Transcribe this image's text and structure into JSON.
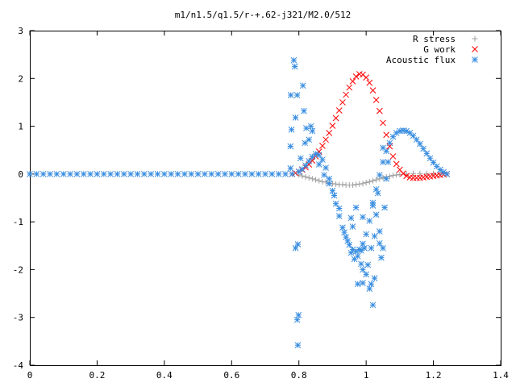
{
  "chart_data": {
    "type": "scatter",
    "title": "m1/n1.5/q1.5/r-+.62-j321/M2.0/512",
    "xlabel": "",
    "ylabel": "",
    "xlim": [
      0,
      1.4
    ],
    "ylim": [
      -4,
      3
    ],
    "x_ticks": [
      "0",
      "0.2",
      "0.4",
      "0.6",
      "0.8",
      "1",
      "1.2",
      "1.4"
    ],
    "y_ticks": [
      "3",
      "2",
      "1",
      "0",
      "-1",
      "-2",
      "-3",
      "-4"
    ],
    "legend_position": "top-right",
    "grid": false,
    "series": [
      {
        "name": "R stress",
        "marker": "plus",
        "color": "#a0a0a0",
        "points": [
          [
            0.8,
            -0.02
          ],
          [
            0.81,
            -0.04
          ],
          [
            0.82,
            -0.06
          ],
          [
            0.83,
            -0.08
          ],
          [
            0.84,
            -0.1
          ],
          [
            0.85,
            -0.12
          ],
          [
            0.86,
            -0.14
          ],
          [
            0.87,
            -0.16
          ],
          [
            0.88,
            -0.17
          ],
          [
            0.89,
            -0.19
          ],
          [
            0.9,
            -0.2
          ],
          [
            0.91,
            -0.21
          ],
          [
            0.92,
            -0.22
          ],
          [
            0.93,
            -0.22
          ],
          [
            0.94,
            -0.23
          ],
          [
            0.95,
            -0.23
          ],
          [
            0.96,
            -0.23
          ],
          [
            0.97,
            -0.22
          ],
          [
            0.98,
            -0.21
          ],
          [
            0.99,
            -0.2
          ],
          [
            1.0,
            -0.18
          ],
          [
            1.01,
            -0.16
          ],
          [
            1.02,
            -0.14
          ],
          [
            1.03,
            -0.12
          ],
          [
            1.04,
            -0.1
          ],
          [
            1.05,
            -0.08
          ],
          [
            1.06,
            -0.06
          ],
          [
            1.07,
            -0.05
          ],
          [
            1.08,
            -0.03
          ],
          [
            1.09,
            -0.02
          ],
          [
            1.1,
            -0.01
          ],
          [
            1.12,
            0.0
          ],
          [
            1.14,
            0.01
          ],
          [
            1.16,
            0.01
          ],
          [
            1.18,
            0.01
          ],
          [
            1.2,
            0.01
          ],
          [
            1.22,
            0.0
          ],
          [
            1.24,
            0.0
          ]
        ]
      },
      {
        "name": "G work",
        "marker": "cross",
        "color": "#ff0000",
        "points": [
          [
            0.78,
            0.0
          ],
          [
            0.79,
            0.02
          ],
          [
            0.8,
            0.05
          ],
          [
            0.81,
            0.09
          ],
          [
            0.82,
            0.14
          ],
          [
            0.83,
            0.2
          ],
          [
            0.84,
            0.28
          ],
          [
            0.85,
            0.37
          ],
          [
            0.86,
            0.47
          ],
          [
            0.87,
            0.59
          ],
          [
            0.88,
            0.72
          ],
          [
            0.89,
            0.86
          ],
          [
            0.9,
            1.01
          ],
          [
            0.91,
            1.17
          ],
          [
            0.92,
            1.33
          ],
          [
            0.93,
            1.5
          ],
          [
            0.94,
            1.66
          ],
          [
            0.95,
            1.81
          ],
          [
            0.96,
            1.94
          ],
          [
            0.97,
            2.04
          ],
          [
            0.98,
            2.09
          ],
          [
            0.99,
            2.08
          ],
          [
            1.0,
            2.02
          ],
          [
            1.01,
            1.91
          ],
          [
            1.02,
            1.75
          ],
          [
            1.03,
            1.55
          ],
          [
            1.04,
            1.32
          ],
          [
            1.05,
            1.07
          ],
          [
            1.06,
            0.82
          ],
          [
            1.07,
            0.58
          ],
          [
            1.08,
            0.37
          ],
          [
            1.09,
            0.21
          ],
          [
            1.1,
            0.09
          ],
          [
            1.11,
            0.01
          ],
          [
            1.12,
            -0.04
          ],
          [
            1.13,
            -0.07
          ],
          [
            1.14,
            -0.08
          ],
          [
            1.15,
            -0.08
          ],
          [
            1.16,
            -0.08
          ],
          [
            1.17,
            -0.07
          ],
          [
            1.18,
            -0.06
          ],
          [
            1.19,
            -0.05
          ],
          [
            1.2,
            -0.04
          ],
          [
            1.21,
            -0.03
          ],
          [
            1.22,
            -0.02
          ],
          [
            1.23,
            -0.01
          ],
          [
            1.24,
            0.0
          ]
        ]
      },
      {
        "name": "Acoustic flux",
        "marker": "star",
        "color": "#3a8ee0",
        "points": [
          [
            0.0,
            0.0
          ],
          [
            0.02,
            0.0
          ],
          [
            0.04,
            0.0
          ],
          [
            0.06,
            0.0
          ],
          [
            0.08,
            0.0
          ],
          [
            0.1,
            0.0
          ],
          [
            0.12,
            0.0
          ],
          [
            0.14,
            0.0
          ],
          [
            0.16,
            0.0
          ],
          [
            0.18,
            0.0
          ],
          [
            0.2,
            0.0
          ],
          [
            0.22,
            0.0
          ],
          [
            0.24,
            0.0
          ],
          [
            0.26,
            0.0
          ],
          [
            0.28,
            0.0
          ],
          [
            0.3,
            0.0
          ],
          [
            0.32,
            0.0
          ],
          [
            0.34,
            0.0
          ],
          [
            0.36,
            0.0
          ],
          [
            0.38,
            0.0
          ],
          [
            0.4,
            0.0
          ],
          [
            0.42,
            0.0
          ],
          [
            0.44,
            0.0
          ],
          [
            0.46,
            0.0
          ],
          [
            0.48,
            0.0
          ],
          [
            0.5,
            0.0
          ],
          [
            0.52,
            0.0
          ],
          [
            0.54,
            0.0
          ],
          [
            0.56,
            0.0
          ],
          [
            0.58,
            0.0
          ],
          [
            0.6,
            0.0
          ],
          [
            0.62,
            0.0
          ],
          [
            0.64,
            0.0
          ],
          [
            0.66,
            0.0
          ],
          [
            0.68,
            0.0
          ],
          [
            0.7,
            0.0
          ],
          [
            0.72,
            0.0
          ],
          [
            0.74,
            0.0
          ],
          [
            0.76,
            0.0
          ],
          [
            0.78,
            0.0
          ],
          [
            0.8,
            0.05
          ],
          [
            0.81,
            0.1
          ],
          [
            0.82,
            0.18
          ],
          [
            0.83,
            0.27
          ],
          [
            0.84,
            0.36
          ],
          [
            0.85,
            0.42
          ],
          [
            0.86,
            0.4
          ],
          [
            0.87,
            0.3
          ],
          [
            0.88,
            0.13
          ],
          [
            0.89,
            -0.1
          ],
          [
            0.9,
            -0.35
          ],
          [
            0.91,
            -0.62
          ],
          [
            0.92,
            -0.88
          ],
          [
            0.93,
            -1.12
          ],
          [
            0.94,
            -1.32
          ],
          [
            0.95,
            -1.48
          ],
          [
            0.96,
            -1.58
          ],
          [
            0.97,
            -1.62
          ],
          [
            0.98,
            -1.58
          ],
          [
            0.99,
            -1.46
          ],
          [
            1.0,
            -1.26
          ],
          [
            1.01,
            -0.98
          ],
          [
            1.02,
            -0.66
          ],
          [
            1.03,
            -0.32
          ],
          [
            1.04,
            -0.02
          ],
          [
            1.05,
            0.25
          ],
          [
            1.06,
            0.48
          ],
          [
            1.07,
            0.65
          ],
          [
            1.08,
            0.78
          ],
          [
            1.09,
            0.86
          ],
          [
            1.1,
            0.9
          ],
          [
            1.11,
            0.91
          ],
          [
            1.12,
            0.9
          ],
          [
            1.13,
            0.86
          ],
          [
            1.14,
            0.8
          ],
          [
            1.15,
            0.72
          ],
          [
            1.16,
            0.63
          ],
          [
            1.17,
            0.53
          ],
          [
            1.18,
            0.43
          ],
          [
            1.19,
            0.33
          ],
          [
            1.2,
            0.24
          ],
          [
            1.21,
            0.16
          ],
          [
            1.22,
            0.09
          ],
          [
            1.23,
            0.04
          ],
          [
            1.24,
            0.0
          ],
          [
            0.785,
            2.38
          ],
          [
            0.788,
            2.25
          ],
          [
            0.776,
            1.65
          ],
          [
            0.778,
            0.93
          ],
          [
            0.79,
            1.18
          ],
          [
            0.795,
            1.65
          ],
          [
            0.812,
            1.85
          ],
          [
            0.815,
            1.32
          ],
          [
            0.822,
            0.96
          ],
          [
            0.818,
            0.65
          ],
          [
            0.805,
            0.33
          ],
          [
            0.775,
            0.58
          ],
          [
            0.775,
            0.12
          ],
          [
            0.79,
            -1.55
          ],
          [
            0.797,
            -1.47
          ],
          [
            0.795,
            -3.05
          ],
          [
            0.799,
            -2.95
          ],
          [
            0.797,
            -3.58
          ],
          [
            0.83,
            0.72
          ],
          [
            0.836,
            1.0
          ],
          [
            0.84,
            0.9
          ],
          [
            0.86,
            0.2
          ],
          [
            0.875,
            -0.02
          ],
          [
            0.89,
            -0.2
          ],
          [
            0.905,
            -0.45
          ],
          [
            0.92,
            -0.72
          ],
          [
            0.935,
            -1.22
          ],
          [
            0.945,
            -1.4
          ],
          [
            0.955,
            -1.65
          ],
          [
            0.965,
            -1.78
          ],
          [
            0.975,
            -1.72
          ],
          [
            0.985,
            -1.6
          ],
          [
            0.995,
            -1.55
          ],
          [
            0.985,
            -1.88
          ],
          [
            0.99,
            -2.0
          ],
          [
            1.0,
            -2.1
          ],
          [
            0.99,
            -2.28
          ],
          [
            0.975,
            -2.3
          ],
          [
            1.01,
            -2.4
          ],
          [
            1.02,
            -2.74
          ],
          [
            1.015,
            -2.3
          ],
          [
            1.025,
            -2.18
          ],
          [
            1.005,
            -1.9
          ],
          [
            1.015,
            -1.55
          ],
          [
            1.025,
            -1.3
          ],
          [
            1.03,
            -0.85
          ],
          [
            1.02,
            -0.6
          ],
          [
            1.035,
            -0.4
          ],
          [
            1.04,
            -1.45
          ],
          [
            1.045,
            -1.75
          ],
          [
            1.05,
            -1.55
          ],
          [
            1.04,
            -1.2
          ],
          [
            1.055,
            -0.7
          ],
          [
            1.06,
            -0.1
          ],
          [
            1.065,
            0.25
          ],
          [
            1.05,
            0.55
          ],
          [
            0.99,
            -0.9
          ],
          [
            0.97,
            -0.7
          ],
          [
            0.955,
            -0.92
          ],
          [
            0.96,
            -1.1
          ]
        ]
      }
    ]
  }
}
